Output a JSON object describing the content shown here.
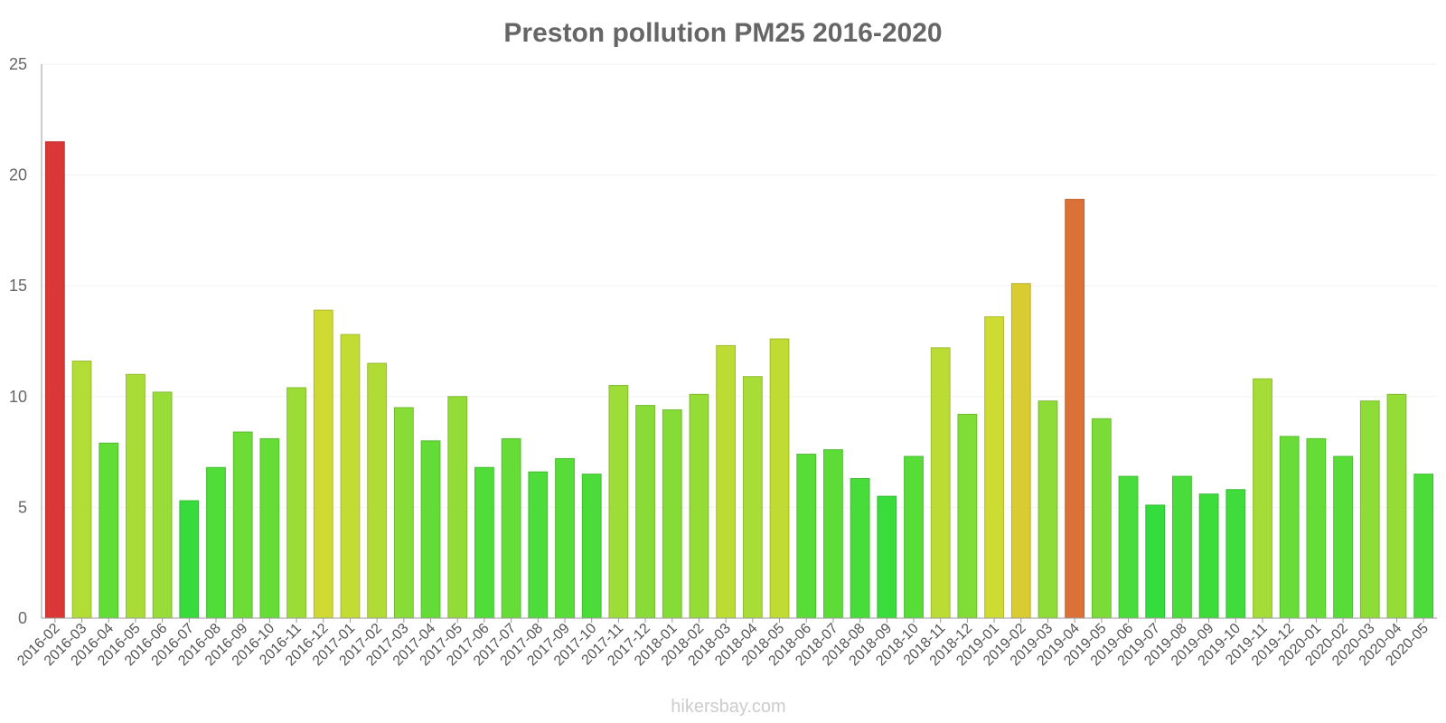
{
  "chart_data": {
    "type": "bar",
    "title": "Preston pollution PM25 2016-2020",
    "xlabel": "",
    "ylabel": "",
    "ylim": [
      0,
      25
    ],
    "yticks": [
      0,
      5,
      10,
      15,
      20,
      25
    ],
    "grid": true,
    "categories": [
      "2016-02",
      "2016-03",
      "2016-04",
      "2016-05",
      "2016-06",
      "2016-07",
      "2016-08",
      "2016-09",
      "2016-10",
      "2016-11",
      "2016-12",
      "2017-01",
      "2017-02",
      "2017-03",
      "2017-04",
      "2017-05",
      "2017-06",
      "2017-07",
      "2017-08",
      "2017-09",
      "2017-10",
      "2017-11",
      "2017-12",
      "2018-01",
      "2018-02",
      "2018-03",
      "2018-04",
      "2018-05",
      "2018-06",
      "2018-07",
      "2018-08",
      "2018-09",
      "2018-10",
      "2018-11",
      "2018-12",
      "2019-01",
      "2019-02",
      "2019-03",
      "2019-04",
      "2019-05",
      "2019-06",
      "2019-07",
      "2019-08",
      "2019-09",
      "2019-10",
      "2019-11",
      "2019-12",
      "2020-01",
      "2020-02",
      "2020-03",
      "2020-04",
      "2020-05"
    ],
    "values": [
      21.5,
      11.6,
      7.9,
      11,
      10.2,
      5.3,
      6.8,
      8.4,
      8.1,
      10.4,
      13.9,
      12.8,
      11.5,
      9.5,
      8,
      10,
      6.8,
      8.1,
      6.6,
      7.2,
      6.5,
      10.5,
      9.6,
      9.4,
      10.1,
      12.3,
      10.9,
      12.6,
      7.4,
      7.6,
      6.3,
      5.5,
      7.3,
      12.2,
      9.2,
      13.6,
      15.1,
      9.8,
      18.9,
      9,
      6.4,
      5.1,
      6.4,
      5.6,
      5.8,
      10.8,
      8.2,
      8.1,
      7.3,
      9.8,
      10.1,
      6.5
    ],
    "credit": "hikersbay.com"
  }
}
